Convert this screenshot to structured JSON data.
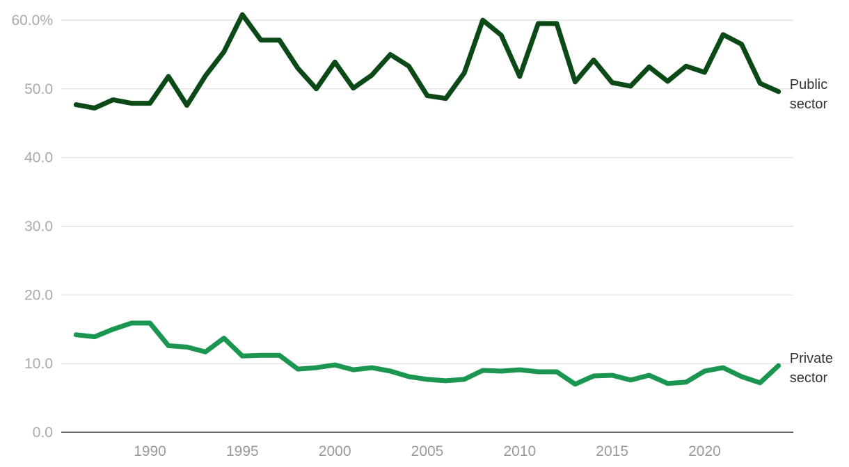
{
  "chart_data": {
    "type": "line",
    "title": "",
    "xlabel": "",
    "ylabel": "",
    "x": [
      1986,
      1987,
      1988,
      1989,
      1990,
      1991,
      1992,
      1993,
      1994,
      1995,
      1996,
      1997,
      1998,
      1999,
      2000,
      2001,
      2002,
      2003,
      2004,
      2005,
      2006,
      2007,
      2008,
      2009,
      2010,
      2011,
      2012,
      2013,
      2014,
      2015,
      2016,
      2017,
      2018,
      2019,
      2020,
      2021,
      2022,
      2023,
      2024
    ],
    "xlim": [
      1985.2,
      2024.8
    ],
    "ylim": [
      0,
      60
    ],
    "y_ticks": [
      {
        "value": 0,
        "label": "0.0"
      },
      {
        "value": 10,
        "label": "10.0"
      },
      {
        "value": 20,
        "label": "20.0"
      },
      {
        "value": 30,
        "label": "30.0"
      },
      {
        "value": 40,
        "label": "40.0"
      },
      {
        "value": 50,
        "label": "50.0"
      },
      {
        "value": 60,
        "label": "60.0%"
      }
    ],
    "x_ticks": [
      {
        "value": 1990,
        "label": "1990"
      },
      {
        "value": 1995,
        "label": "1995"
      },
      {
        "value": 2000,
        "label": "2000"
      },
      {
        "value": 2005,
        "label": "2005"
      },
      {
        "value": 2010,
        "label": "2010"
      },
      {
        "value": 2015,
        "label": "2015"
      },
      {
        "value": 2020,
        "label": "2020"
      }
    ],
    "grid": true,
    "series": [
      {
        "name": "Public sector",
        "label_lines": [
          "Public",
          "sector"
        ],
        "color": "#0b4a16",
        "values": [
          47.7,
          47.2,
          48.4,
          47.9,
          47.9,
          51.8,
          47.6,
          51.9,
          55.4,
          60.8,
          57.1,
          57.1,
          53.0,
          50.0,
          53.9,
          50.1,
          52.0,
          55.0,
          53.3,
          49.0,
          48.6,
          52.3,
          60.0,
          57.8,
          51.8,
          59.5,
          59.5,
          51.0,
          54.2,
          50.9,
          50.4,
          53.2,
          51.1,
          53.3,
          52.4,
          57.9,
          56.5,
          50.8,
          49.6
        ]
      },
      {
        "name": "Private sector",
        "label_lines": [
          "Private",
          "sector"
        ],
        "color": "#1a9650",
        "values": [
          14.2,
          13.9,
          15.0,
          15.9,
          15.9,
          12.6,
          12.4,
          11.7,
          13.7,
          11.1,
          11.2,
          11.2,
          9.2,
          9.4,
          9.8,
          9.1,
          9.4,
          8.9,
          8.1,
          7.7,
          7.5,
          7.7,
          9.0,
          8.9,
          9.1,
          8.8,
          8.8,
          7.0,
          8.2,
          8.3,
          7.6,
          8.3,
          7.1,
          7.3,
          8.9,
          9.4,
          8.1,
          7.2,
          9.7
        ]
      }
    ]
  }
}
